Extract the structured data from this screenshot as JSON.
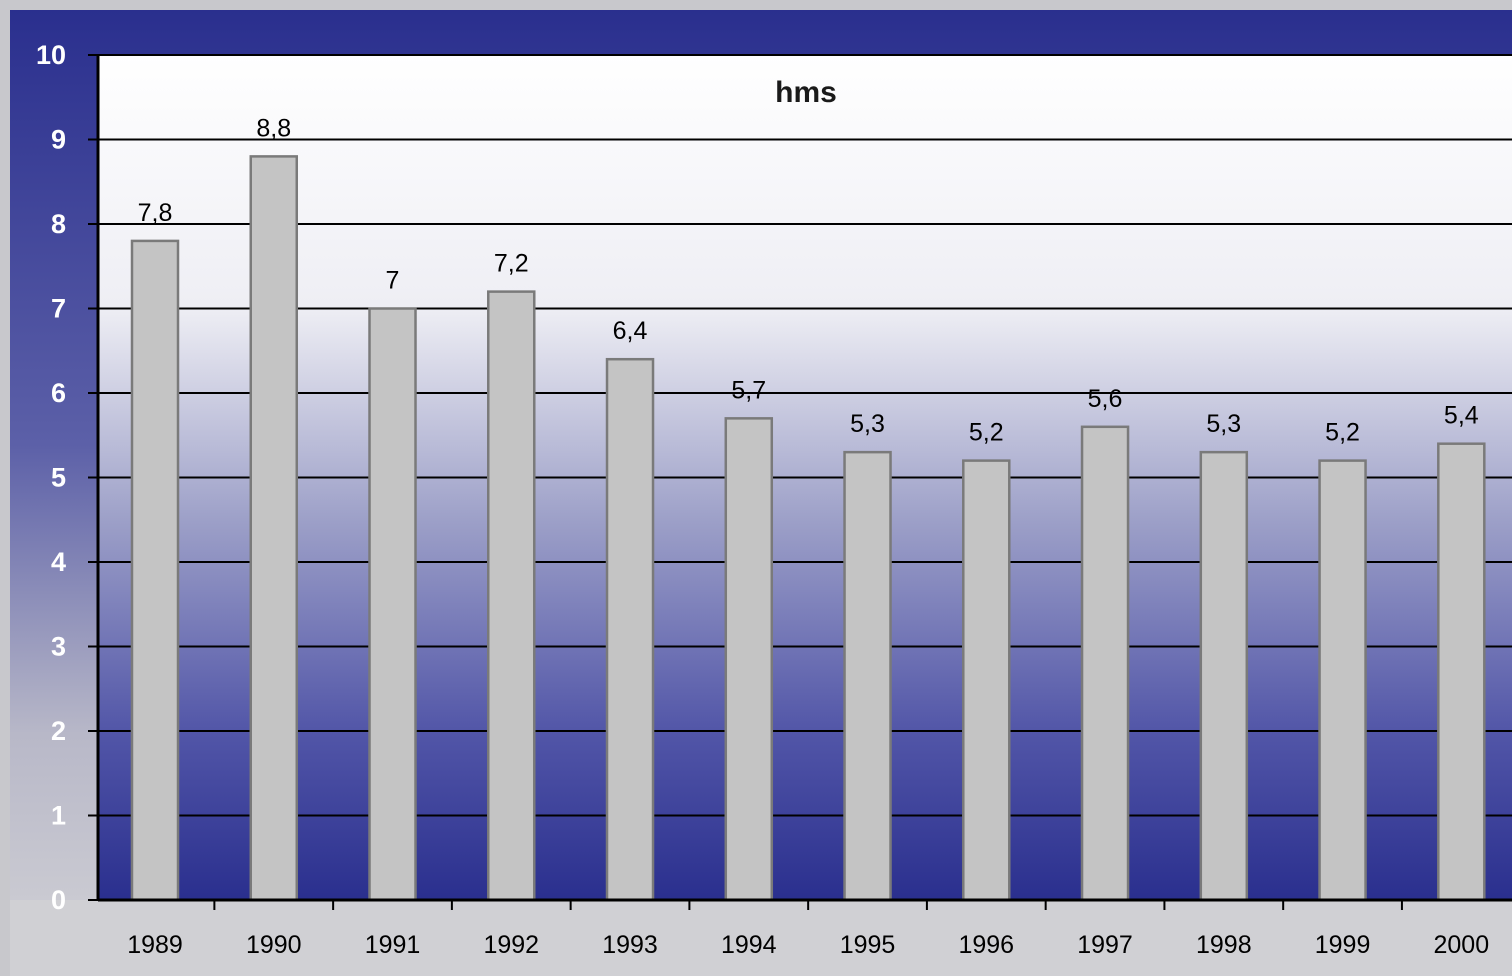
{
  "chart_data": {
    "type": "bar",
    "title": "hms",
    "categories": [
      "1989",
      "1990",
      "1991",
      "1992",
      "1993",
      "1994",
      "1995",
      "1996",
      "1997",
      "1998",
      "1999",
      "2000"
    ],
    "values": [
      7.8,
      8.8,
      7,
      7.2,
      6.4,
      5.7,
      5.3,
      5.2,
      5.6,
      5.3,
      5.2,
      5.4
    ],
    "value_labels": [
      "7,8",
      "8,8",
      "7",
      "7,2",
      "6,4",
      "5,7",
      "5,3",
      "5,2",
      "5,6",
      "5,3",
      "5,2",
      "5,4"
    ],
    "yticks": [
      "0",
      "1",
      "2",
      "3",
      "4",
      "5",
      "6",
      "7",
      "8",
      "9",
      "10"
    ],
    "ylim": [
      0,
      10
    ],
    "xlabel": "",
    "ylabel": "",
    "grid": true,
    "legend": "none",
    "colors": {
      "bar_fill": "#c4c4c4",
      "bar_edge": "#7a7a7a",
      "frame": "#2e3390",
      "plot_top": "#ffffff",
      "plot_bottom": "#2a2f8e",
      "gridline": "#000000",
      "outer_background": "#c8c8cc"
    }
  }
}
